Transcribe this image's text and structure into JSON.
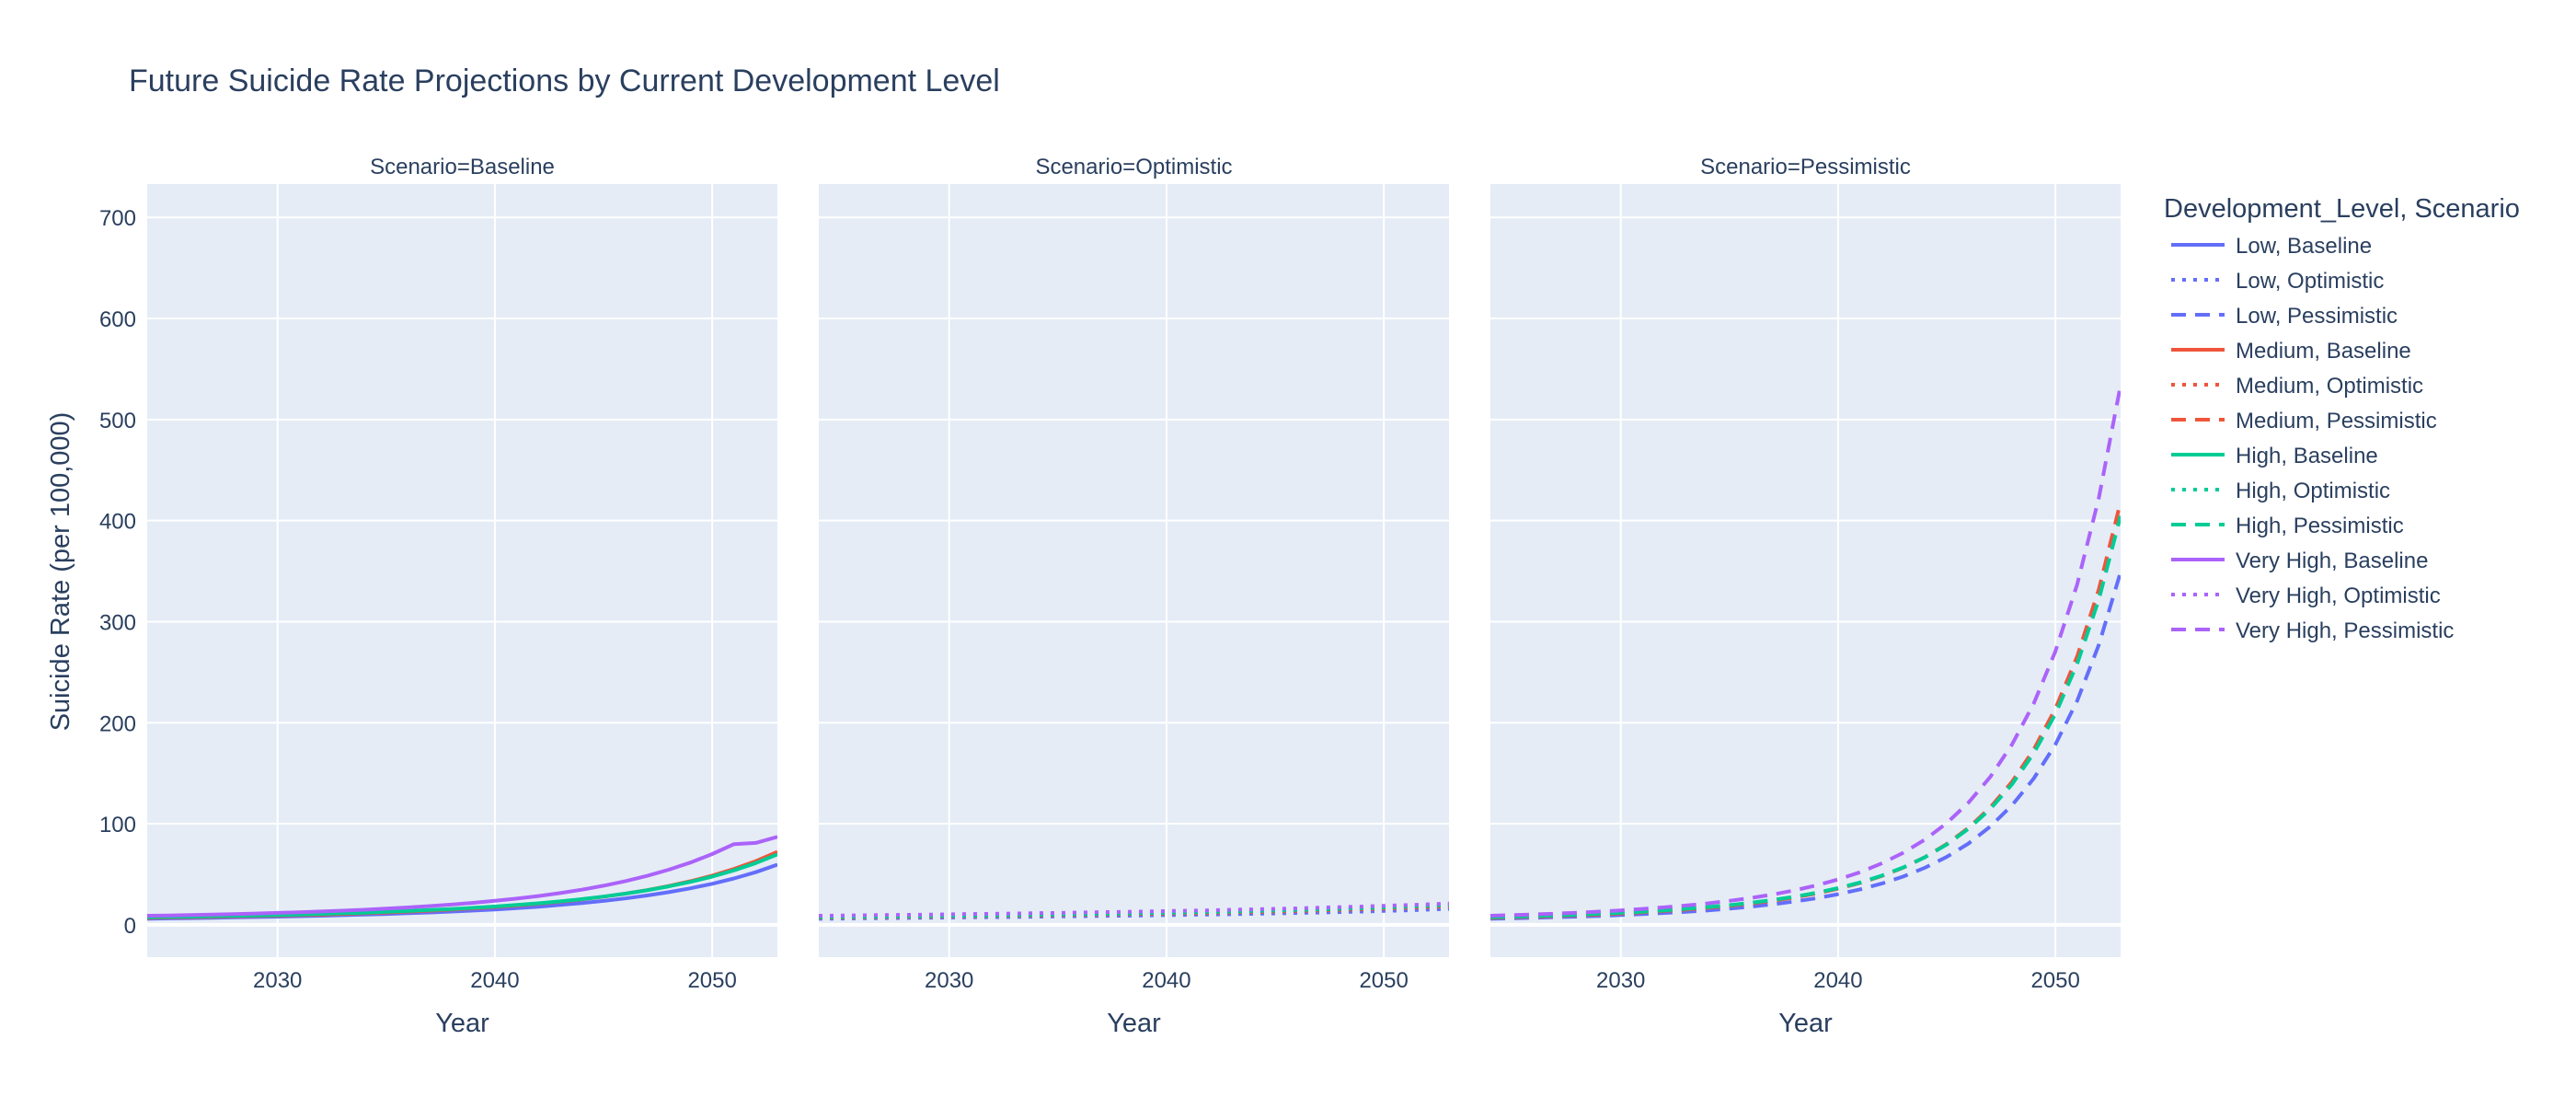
{
  "chart_data": {
    "type": "line",
    "title": "Future Suicide Rate Projections by Current Development Level",
    "xlabel": "Year",
    "ylabel": "Suicide Rate (per 100,000)",
    "legend_title": "Development_Level, Scenario",
    "legend_position": "right",
    "grid": true,
    "xlim": [
      2024,
      2053
    ],
    "ylim": [
      -32,
      733
    ],
    "x_ticks": [
      "2030",
      "2040",
      "2050"
    ],
    "y_ticks": [
      "0",
      "100",
      "200",
      "300",
      "400",
      "500",
      "600",
      "700"
    ],
    "colors": {
      "plot_bg": "#e5ecf6",
      "Low": "#636efa",
      "Medium": "#ef553b",
      "High": "#00cc96",
      "Very High": "#ab63fa"
    },
    "facets": [
      "Scenario=Baseline",
      "Scenario=Optimistic",
      "Scenario=Pessimistic"
    ],
    "x": [
      2024,
      2025,
      2026,
      2027,
      2028,
      2029,
      2030,
      2031,
      2032,
      2033,
      2034,
      2035,
      2036,
      2037,
      2038,
      2039,
      2040,
      2041,
      2042,
      2043,
      2044,
      2045,
      2046,
      2047,
      2048,
      2049,
      2050,
      2051,
      2052,
      2053
    ],
    "series": [
      {
        "name": "Low, Baseline",
        "level": "Low",
        "scenario": "Baseline",
        "dash": "solid",
        "values": [
          6.0,
          6.3,
          6.6,
          7.0,
          7.3,
          7.7,
          8.1,
          8.5,
          9.0,
          9.5,
          10.1,
          10.7,
          11.4,
          12.2,
          13.1,
          14.1,
          15.2,
          16.5,
          17.9,
          19.6,
          21.5,
          23.6,
          26.1,
          29.0,
          32.3,
          36.1,
          40.6,
          45.9,
          52.1,
          59.5
        ]
      },
      {
        "name": "Low, Optimistic",
        "level": "Low",
        "scenario": "Optimistic",
        "dash": "dot",
        "values": [
          6.0,
          6.2,
          6.4,
          6.6,
          6.8,
          7.0,
          7.2,
          7.4,
          7.6,
          7.8,
          8.0,
          8.3,
          8.5,
          8.8,
          9.0,
          9.3,
          9.6,
          9.9,
          10.2,
          10.5,
          10.9,
          11.3,
          11.7,
          12.1,
          12.6,
          13.1,
          13.7,
          14.3,
          15.0,
          15.7
        ]
      },
      {
        "name": "Low, Pessimistic",
        "level": "Low",
        "scenario": "Pessimistic",
        "dash": "dash",
        "values": [
          6.0,
          6.4,
          6.9,
          7.5,
          8.1,
          8.8,
          9.7,
          10.6,
          11.7,
          12.9,
          14.3,
          16.0,
          18.0,
          20.3,
          23.1,
          26.3,
          30.3,
          35.0,
          40.8,
          47.8,
          56.5,
          67.2,
          80.5,
          97.2,
          118.2,
          144.7,
          178.4,
          221.6,
          277.2,
          349.0
        ]
      },
      {
        "name": "Medium, Baseline",
        "level": "Medium",
        "scenario": "Baseline",
        "dash": "solid",
        "values": [
          7.0,
          7.3,
          7.6,
          8.0,
          8.4,
          8.8,
          9.2,
          9.7,
          10.2,
          10.8,
          11.5,
          12.2,
          13.1,
          14.0,
          15.1,
          16.3,
          17.6,
          19.1,
          20.9,
          22.9,
          25.2,
          27.8,
          30.8,
          34.3,
          38.4,
          43.1,
          48.7,
          55.3,
          63.0,
          72.2
        ]
      },
      {
        "name": "Medium, Optimistic",
        "level": "Medium",
        "scenario": "Optimistic",
        "dash": "dot",
        "values": [
          7.0,
          7.2,
          7.4,
          7.6,
          7.8,
          8.0,
          8.3,
          8.5,
          8.8,
          9.0,
          9.3,
          9.6,
          9.9,
          10.2,
          10.5,
          10.8,
          11.2,
          11.5,
          11.9,
          12.3,
          12.8,
          13.2,
          13.7,
          14.2,
          14.8,
          15.4,
          16.1,
          16.8,
          17.6,
          18.4
        ]
      },
      {
        "name": "Medium, Pessimistic",
        "level": "Medium",
        "scenario": "Pessimistic",
        "dash": "dash",
        "values": [
          7.0,
          7.5,
          8.1,
          8.7,
          9.5,
          10.3,
          11.3,
          12.4,
          13.7,
          15.1,
          16.8,
          18.8,
          21.1,
          23.9,
          27.1,
          31.0,
          35.7,
          41.3,
          48.2,
          56.6,
          67.0,
          79.9,
          96.0,
          116.1,
          141.4,
          173.3,
          213.8,
          265.6,
          332.2,
          418.5
        ]
      },
      {
        "name": "High, Baseline",
        "level": "High",
        "scenario": "Baseline",
        "dash": "solid",
        "values": [
          7.5,
          7.8,
          8.1,
          8.5,
          8.9,
          9.3,
          9.7,
          10.2,
          10.8,
          11.4,
          12.0,
          12.8,
          13.6,
          14.6,
          15.6,
          16.8,
          18.1,
          19.6,
          21.3,
          23.2,
          25.4,
          27.9,
          30.8,
          34.1,
          38.0,
          42.5,
          47.7,
          53.9,
          61.1,
          69.7
        ]
      },
      {
        "name": "High, Optimistic",
        "level": "High",
        "scenario": "Optimistic",
        "dash": "dot",
        "values": [
          7.5,
          7.7,
          7.9,
          8.1,
          8.4,
          8.6,
          8.8,
          9.1,
          9.3,
          9.6,
          9.9,
          10.2,
          10.5,
          10.8,
          11.1,
          11.5,
          11.9,
          12.3,
          12.7,
          13.1,
          13.6,
          14.1,
          14.6,
          15.2,
          15.8,
          16.4,
          17.1,
          17.9,
          18.7,
          19.6
        ]
      },
      {
        "name": "High, Pessimistic",
        "level": "High",
        "scenario": "Pessimistic",
        "dash": "dash",
        "values": [
          7.5,
          8.0,
          8.6,
          9.3,
          10.0,
          10.9,
          11.9,
          13.0,
          14.3,
          15.8,
          17.5,
          19.5,
          21.8,
          24.6,
          27.8,
          31.7,
          36.3,
          41.8,
          48.6,
          56.8,
          66.9,
          79.4,
          95.0,
          114.5,
          138.9,
          169.6,
          208.5,
          258.2,
          322.1,
          404.7
        ]
      },
      {
        "name": "Very High, Baseline",
        "level": "Very High",
        "scenario": "Baseline",
        "dash": "solid",
        "values": [
          9.0,
          9.3,
          9.7,
          10.2,
          10.6,
          11.2,
          11.8,
          12.4,
          13.2,
          14.0,
          14.9,
          16.0,
          17.2,
          18.5,
          20.0,
          21.7,
          23.7,
          25.9,
          28.5,
          31.4,
          34.8,
          38.7,
          43.2,
          48.4,
          54.5,
          61.6,
          70.0,
          79.8,
          81.0,
          87.0
        ]
      },
      {
        "name": "Very High, Optimistic",
        "level": "Very High",
        "scenario": "Optimistic",
        "dash": "dot",
        "values": [
          9.0,
          9.2,
          9.4,
          9.7,
          9.9,
          10.1,
          10.4,
          10.7,
          10.9,
          11.2,
          11.5,
          11.8,
          12.2,
          12.5,
          12.8,
          13.2,
          13.6,
          14.0,
          14.4,
          14.9,
          15.3,
          15.8,
          16.3,
          16.9,
          17.5,
          18.1,
          18.8,
          19.5,
          20.3,
          21.1
        ]
      },
      {
        "name": "Very High, Pessimistic",
        "level": "Very High",
        "scenario": "Pessimistic",
        "dash": "dash",
        "values": [
          9.0,
          9.6,
          10.3,
          11.1,
          12.0,
          13.1,
          14.3,
          15.7,
          17.3,
          19.1,
          21.2,
          23.7,
          26.6,
          30.0,
          34.1,
          39.0,
          44.9,
          52.0,
          60.7,
          71.3,
          84.4,
          100.6,
          120.9,
          146.3,
          178.3,
          218.8,
          270.5,
          336.8,
          422.6,
          534.0
        ]
      }
    ]
  }
}
